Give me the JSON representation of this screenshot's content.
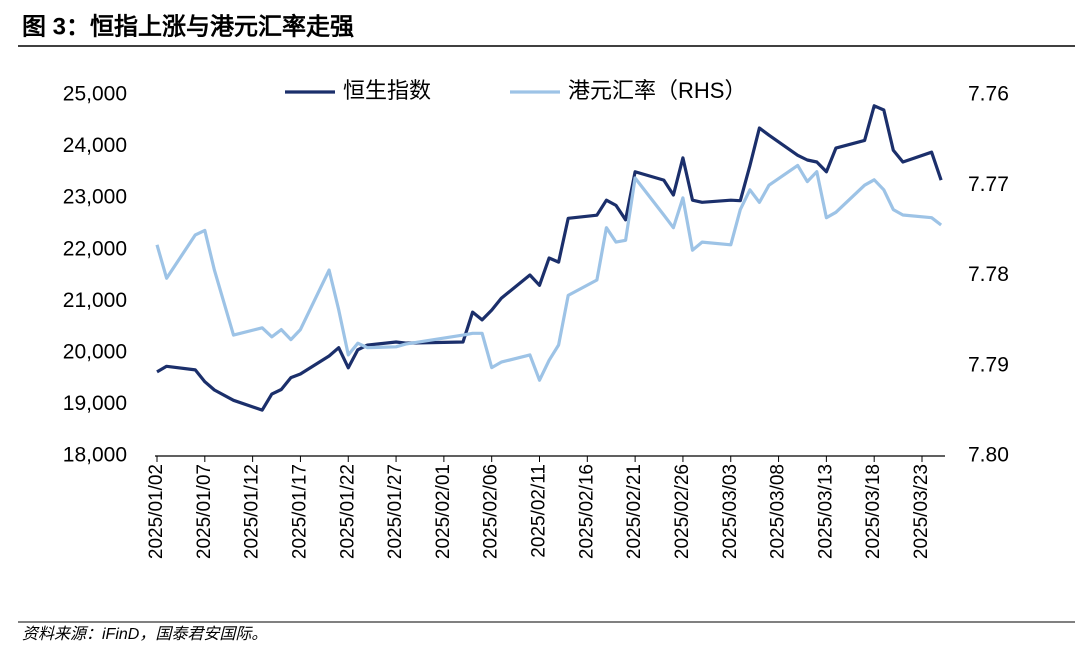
{
  "chart_data": {
    "type": "line",
    "title": "图 3：恒指上涨与港元汇率走强",
    "source": "资料来源：iFinD，国泰君安国际。",
    "x": [
      "2025/01/02",
      "2025/01/03",
      "2025/01/06",
      "2025/01/07",
      "2025/01/08",
      "2025/01/10",
      "2025/01/13",
      "2025/01/14",
      "2025/01/15",
      "2025/01/16",
      "2025/01/17",
      "2025/01/20",
      "2025/01/21",
      "2025/01/22",
      "2025/01/23",
      "2025/01/24",
      "2025/01/27",
      "2025/01/28",
      "2025/02/03",
      "2025/02/04",
      "2025/02/05",
      "2025/02/06",
      "2025/02/07",
      "2025/02/10",
      "2025/02/11",
      "2025/02/12",
      "2025/02/13",
      "2025/02/14",
      "2025/02/17",
      "2025/02/18",
      "2025/02/19",
      "2025/02/20",
      "2025/02/21",
      "2025/02/24",
      "2025/02/25",
      "2025/02/26",
      "2025/02/27",
      "2025/02/28",
      "2025/03/03",
      "2025/03/04",
      "2025/03/05",
      "2025/03/06",
      "2025/03/07",
      "2025/03/10",
      "2025/03/11",
      "2025/03/12",
      "2025/03/13",
      "2025/03/14",
      "2025/03/17",
      "2025/03/18",
      "2025/03/19",
      "2025/03/20",
      "2025/03/21",
      "2025/03/24",
      "2025/03/25"
    ],
    "series": [
      {
        "name": "恒生指数",
        "color": "#1b2f6b",
        "values": [
          19630,
          19740,
          19670,
          19440,
          19280,
          19080,
          18890,
          19200,
          19290,
          19520,
          19590,
          19940,
          20100,
          19710,
          20060,
          20150,
          20210,
          20190,
          20210,
          20790,
          20640,
          20830,
          21060,
          21510,
          21310,
          21840,
          21760,
          22610,
          22670,
          22960,
          22860,
          22580,
          23510,
          23350,
          23060,
          23780,
          22960,
          22920,
          22960,
          22950,
          23630,
          24360,
          24220,
          23830,
          23740,
          23700,
          23510,
          23970,
          24120,
          24790,
          24710,
          23930,
          23700,
          23890,
          23350
        ]
      },
      {
        "name": "港元汇率（RHS）",
        "color": "#9dc3e6",
        "axis": "y2",
        "values": [
          7.7766,
          7.7803,
          7.7755,
          7.775,
          7.7794,
          7.7866,
          7.7858,
          7.7868,
          7.786,
          7.7871,
          7.786,
          7.7794,
          7.7838,
          7.7888,
          7.7875,
          7.788,
          7.7879,
          7.7876,
          7.7866,
          7.7864,
          7.7864,
          7.7902,
          7.7896,
          7.7888,
          7.7916,
          7.7894,
          7.7877,
          7.7822,
          7.7805,
          7.7747,
          7.7763,
          7.7761,
          7.7692,
          7.7733,
          7.7747,
          7.7714,
          7.7772,
          7.7763,
          7.7766,
          7.7727,
          7.7705,
          7.7719,
          7.77,
          7.7678,
          7.7696,
          7.7685,
          7.7736,
          7.773,
          7.77,
          7.7694,
          7.7705,
          7.7727,
          7.7733,
          7.7736,
          7.7744
        ]
      }
    ],
    "xticks": [
      "2025/01/02",
      "2025/01/07",
      "2025/01/12",
      "2025/01/17",
      "2025/01/22",
      "2025/01/27",
      "2025/02/01",
      "2025/02/06",
      "2025/02/11",
      "2025/02/16",
      "2025/02/21",
      "2025/02/26",
      "2025/03/03",
      "2025/03/08",
      "2025/03/13",
      "2025/03/18",
      "2025/03/23"
    ],
    "ylim": [
      18000,
      25000
    ],
    "yticks": [
      {
        "value": 18000,
        "label": "18,000"
      },
      {
        "value": 19000,
        "label": "19,000"
      },
      {
        "value": 20000,
        "label": "20,000"
      },
      {
        "value": 21000,
        "label": "21,000"
      },
      {
        "value": 22000,
        "label": "22,000"
      },
      {
        "value": 23000,
        "label": "23,000"
      },
      {
        "value": 24000,
        "label": "24,000"
      },
      {
        "value": 25000,
        "label": "25,000"
      }
    ],
    "y2lim": [
      7.8,
      7.76
    ],
    "y2ticks": [
      7.76,
      7.77,
      7.78,
      7.79,
      {
        "value": 7.8,
        "label": "7.80"
      }
    ],
    "legend": "top"
  }
}
